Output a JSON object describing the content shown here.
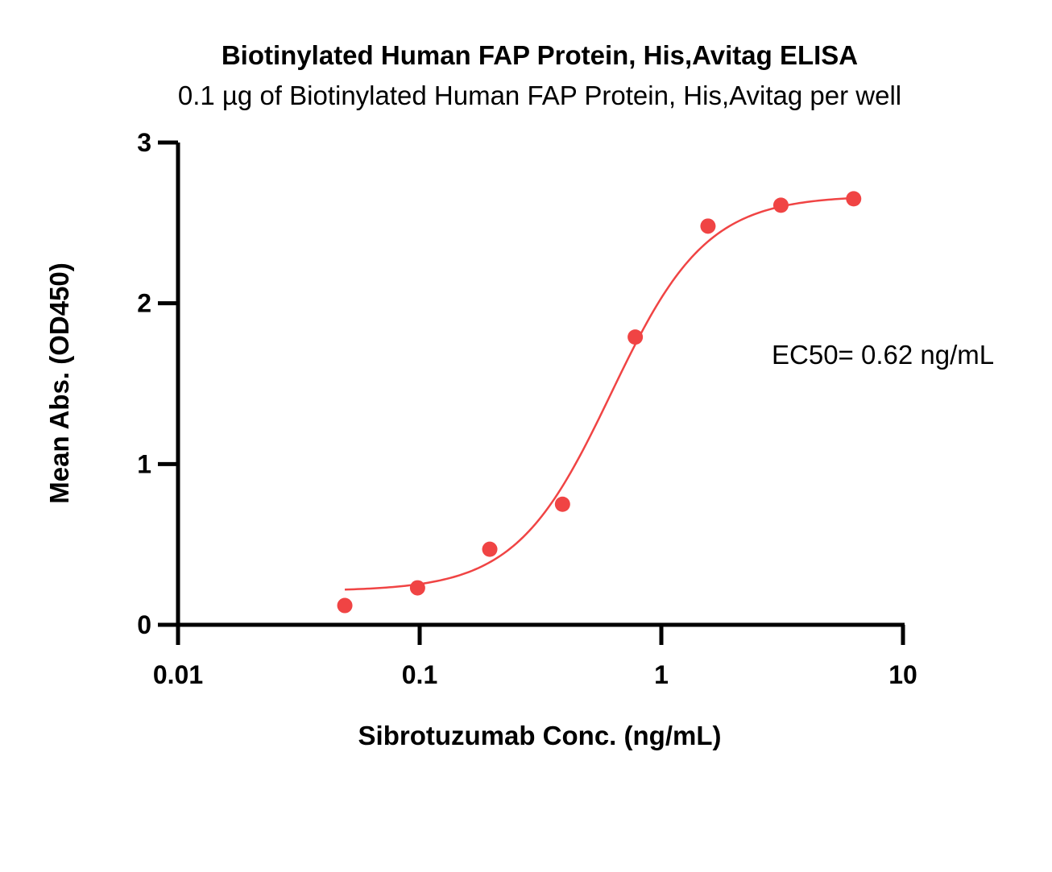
{
  "chart_data": {
    "type": "scatter",
    "title": "Biotinylated Human FAP Protein, His,Avitag ELISA",
    "subtitle": "0.1 µg of Biotinylated Human FAP Protein, His,Avitag per well",
    "xlabel": "Sibrotuzumab Conc. (ng/mL)",
    "ylabel": "Mean Abs. (OD450)",
    "x_scale": "log",
    "xlim": [
      0.01,
      10
    ],
    "ylim": [
      0,
      3
    ],
    "x_ticks": [
      0.01,
      0.1,
      1,
      10
    ],
    "x_tick_labels": [
      "0.01",
      "0.1",
      "1",
      "10"
    ],
    "y_ticks": [
      0,
      1,
      2,
      3
    ],
    "y_tick_labels": [
      "0",
      "1",
      "2",
      "3"
    ],
    "grid": false,
    "series": [
      {
        "x": [
          0.049,
          0.098,
          0.195,
          0.39,
          0.78,
          1.56,
          3.125,
          6.25
        ],
        "y": [
          0.12,
          0.23,
          0.47,
          0.75,
          1.79,
          2.48,
          2.61,
          2.65
        ]
      }
    ],
    "fit": {
      "model": "4PL",
      "bottom": 0.21,
      "top": 2.67,
      "ec50": 0.62,
      "hill": 2.2,
      "x_range": [
        0.049,
        6.25
      ]
    },
    "annotations": [
      {
        "text": "EC50= 0.62 ng/mL"
      }
    ],
    "colors": {
      "series": "#f04444",
      "axis": "#000000"
    }
  }
}
